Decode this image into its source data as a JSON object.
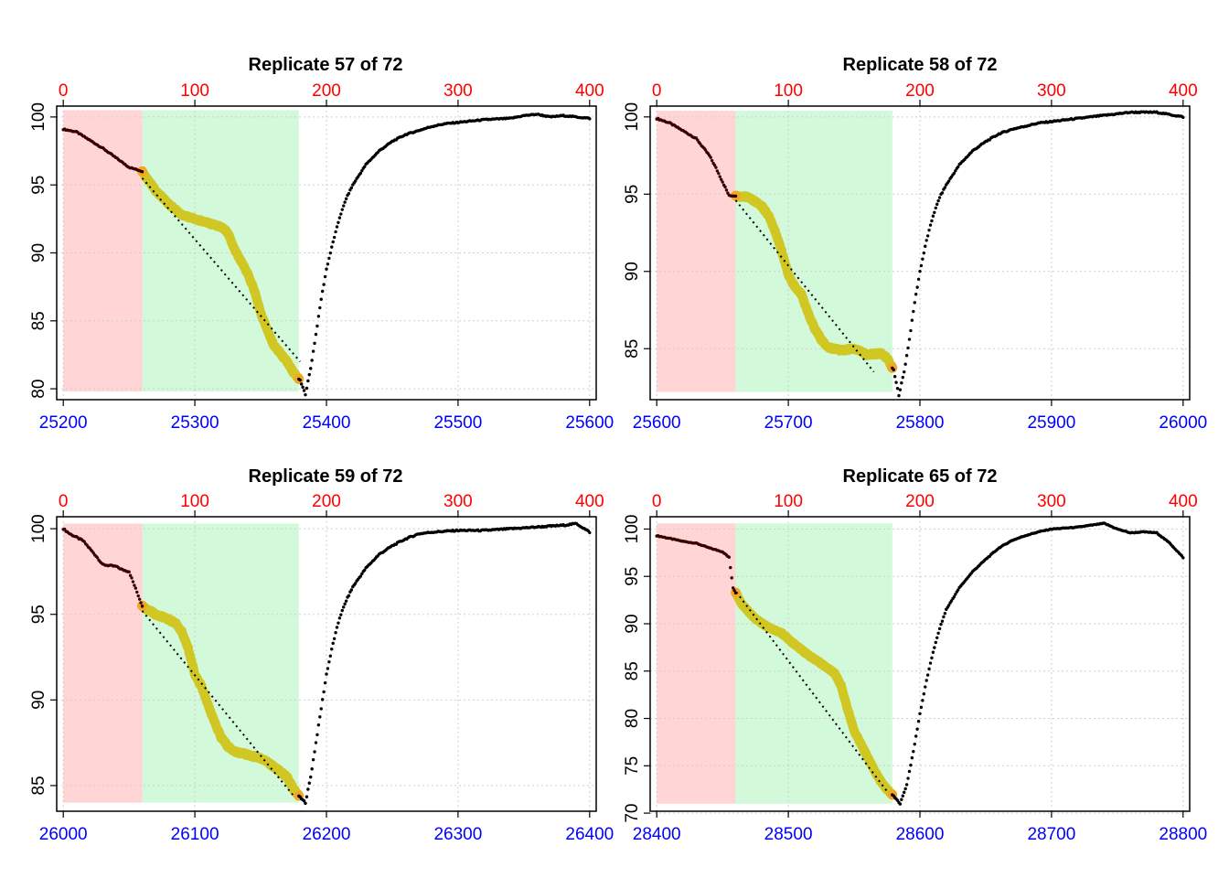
{
  "chart_data": [
    {
      "type": "scatter",
      "title": "Replicate 57 of 72",
      "xlim": [
        25195,
        25605
      ],
      "x_ticks": [
        25200,
        25300,
        25400,
        25500,
        25600
      ],
      "top_ticks": [
        0,
        100,
        200,
        300,
        400
      ],
      "ylim": [
        79.2,
        100.8
      ],
      "y_ticks": [
        80,
        85,
        90,
        95,
        100
      ],
      "series_path": [
        [
          0,
          99.1
        ],
        [
          10,
          98.9
        ],
        [
          20,
          98.3
        ],
        [
          30,
          97.7
        ],
        [
          40,
          97.0
        ],
        [
          50,
          96.3
        ],
        [
          60,
          96.0
        ],
        [
          70,
          94.6
        ],
        [
          80,
          93.6
        ],
        [
          90,
          92.8
        ],
        [
          100,
          92.5
        ],
        [
          110,
          92.2
        ],
        [
          120,
          91.9
        ],
        [
          125,
          91.5
        ],
        [
          130,
          90.3
        ],
        [
          140,
          88.5
        ],
        [
          145,
          87.3
        ],
        [
          150,
          85.6
        ],
        [
          155,
          84.3
        ],
        [
          160,
          83.2
        ],
        [
          165,
          82.6
        ],
        [
          170,
          82.0
        ],
        [
          175,
          81.2
        ],
        [
          180,
          80.6
        ],
        [
          184,
          79.6
        ],
        [
          188,
          81.5
        ],
        [
          192,
          84.0
        ],
        [
          196,
          86.6
        ],
        [
          200,
          88.8
        ],
        [
          205,
          90.8
        ],
        [
          210,
          92.6
        ],
        [
          215,
          94.0
        ],
        [
          220,
          95.0
        ],
        [
          230,
          96.5
        ],
        [
          240,
          97.5
        ],
        [
          250,
          98.2
        ],
        [
          260,
          98.7
        ],
        [
          270,
          99.0
        ],
        [
          280,
          99.3
        ],
        [
          290,
          99.5
        ],
        [
          300,
          99.6
        ],
        [
          320,
          99.8
        ],
        [
          340,
          99.9
        ],
        [
          350,
          100.1
        ],
        [
          360,
          100.2
        ],
        [
          370,
          100.0
        ],
        [
          380,
          100.1
        ],
        [
          390,
          100.0
        ],
        [
          400,
          99.9
        ]
      ],
      "fit_start": [
        60,
        95.5
      ],
      "fit_end": [
        180,
        82.0
      ],
      "pre_window": [
        0,
        60
      ],
      "fit_window": [
        60,
        179
      ],
      "y_band": [
        79.8,
        100.5
      ]
    },
    {
      "type": "scatter",
      "title": "Replicate 58 of 72",
      "xlim": [
        25595,
        26005
      ],
      "x_ticks": [
        25600,
        25700,
        25800,
        25900,
        26000
      ],
      "top_ticks": [
        0,
        100,
        200,
        300,
        400
      ],
      "ylim": [
        81.7,
        100.7
      ],
      "y_ticks": [
        85,
        90,
        95,
        100
      ],
      "series_path": [
        [
          0,
          99.9
        ],
        [
          10,
          99.6
        ],
        [
          20,
          99.1
        ],
        [
          30,
          98.6
        ],
        [
          40,
          97.5
        ],
        [
          45,
          96.7
        ],
        [
          50,
          95.8
        ],
        [
          55,
          94.9
        ],
        [
          60,
          94.9
        ],
        [
          70,
          94.8
        ],
        [
          80,
          94.2
        ],
        [
          85,
          93.6
        ],
        [
          90,
          92.6
        ],
        [
          95,
          91.3
        ],
        [
          100,
          89.8
        ],
        [
          105,
          89.0
        ],
        [
          110,
          88.5
        ],
        [
          115,
          87.3
        ],
        [
          120,
          86.3
        ],
        [
          125,
          85.6
        ],
        [
          130,
          85.1
        ],
        [
          140,
          84.9
        ],
        [
          150,
          85.0
        ],
        [
          160,
          84.6
        ],
        [
          170,
          84.7
        ],
        [
          175,
          84.4
        ],
        [
          180,
          83.6
        ],
        [
          184,
          82.0
        ],
        [
          188,
          83.5
        ],
        [
          192,
          85.6
        ],
        [
          196,
          88.0
        ],
        [
          200,
          90.0
        ],
        [
          205,
          92.0
        ],
        [
          210,
          93.6
        ],
        [
          215,
          94.8
        ],
        [
          220,
          95.6
        ],
        [
          230,
          96.9
        ],
        [
          240,
          97.8
        ],
        [
          250,
          98.4
        ],
        [
          260,
          98.9
        ],
        [
          270,
          99.2
        ],
        [
          280,
          99.4
        ],
        [
          290,
          99.6
        ],
        [
          300,
          99.7
        ],
        [
          320,
          99.9
        ],
        [
          340,
          100.1
        ],
        [
          360,
          100.3
        ],
        [
          380,
          100.3
        ],
        [
          400,
          100.0
        ]
      ],
      "fit_start": [
        60,
        94.6
      ],
      "fit_end": [
        165,
        83.5
      ],
      "pre_window": [
        0,
        60
      ],
      "fit_window": [
        60,
        179
      ],
      "y_band": [
        82.2,
        100.4
      ]
    },
    {
      "type": "scatter",
      "title": "Replicate 59 of 72",
      "xlim": [
        25995,
        26405
      ],
      "x_ticks": [
        26000,
        26100,
        26200,
        26300,
        26400
      ],
      "top_ticks": [
        0,
        100,
        200,
        300,
        400
      ],
      "ylim": [
        83.5,
        100.7
      ],
      "y_ticks": [
        85,
        90,
        95,
        100
      ],
      "series_path": [
        [
          0,
          100.0
        ],
        [
          5,
          99.7
        ],
        [
          15,
          99.3
        ],
        [
          25,
          98.4
        ],
        [
          30,
          97.9
        ],
        [
          40,
          97.8
        ],
        [
          45,
          97.6
        ],
        [
          50,
          97.5
        ],
        [
          55,
          96.5
        ],
        [
          60,
          95.5
        ],
        [
          70,
          95.0
        ],
        [
          80,
          94.7
        ],
        [
          85,
          94.5
        ],
        [
          90,
          94.0
        ],
        [
          95,
          93.0
        ],
        [
          100,
          91.5
        ],
        [
          105,
          90.8
        ],
        [
          110,
          89.7
        ],
        [
          115,
          88.7
        ],
        [
          120,
          87.8
        ],
        [
          125,
          87.3
        ],
        [
          130,
          87.0
        ],
        [
          140,
          86.8
        ],
        [
          150,
          86.6
        ],
        [
          160,
          86.1
        ],
        [
          170,
          85.5
        ],
        [
          175,
          84.8
        ],
        [
          180,
          84.3
        ],
        [
          184,
          84.0
        ],
        [
          188,
          85.5
        ],
        [
          192,
          87.5
        ],
        [
          196,
          89.5
        ],
        [
          200,
          91.5
        ],
        [
          205,
          93.3
        ],
        [
          210,
          94.8
        ],
        [
          215,
          95.8
        ],
        [
          220,
          96.6
        ],
        [
          230,
          97.7
        ],
        [
          240,
          98.5
        ],
        [
          250,
          99.0
        ],
        [
          260,
          99.4
        ],
        [
          270,
          99.7
        ],
        [
          280,
          99.8
        ],
        [
          300,
          99.9
        ],
        [
          320,
          99.9
        ],
        [
          340,
          100.0
        ],
        [
          360,
          100.1
        ],
        [
          380,
          100.2
        ],
        [
          390,
          100.3
        ],
        [
          400,
          99.8
        ]
      ],
      "fit_start": [
        60,
        95.2
      ],
      "fit_end": [
        175,
        84.4
      ],
      "pre_window": [
        0,
        60
      ],
      "fit_window": [
        60,
        179
      ],
      "y_band": [
        84.0,
        100.3
      ]
    },
    {
      "type": "scatter",
      "title": "Replicate 65 of 72",
      "xlim": [
        28395,
        28805
      ],
      "x_ticks": [
        28400,
        28500,
        28600,
        28700,
        28800
      ],
      "top_ticks": [
        0,
        100,
        200,
        300,
        400
      ],
      "ylim": [
        70.2,
        101.3
      ],
      "y_ticks": [
        70,
        75,
        80,
        85,
        90,
        95,
        100
      ],
      "series_path": [
        [
          0,
          99.3
        ],
        [
          10,
          99.0
        ],
        [
          20,
          98.7
        ],
        [
          30,
          98.5
        ],
        [
          40,
          98.0
        ],
        [
          50,
          97.6
        ],
        [
          55,
          97.0
        ],
        [
          58,
          93.8
        ],
        [
          65,
          92.0
        ],
        [
          75,
          90.5
        ],
        [
          85,
          89.6
        ],
        [
          95,
          89.0
        ],
        [
          105,
          87.8
        ],
        [
          115,
          86.7
        ],
        [
          125,
          85.8
        ],
        [
          135,
          84.8
        ],
        [
          140,
          83.5
        ],
        [
          145,
          81.0
        ],
        [
          150,
          78.7
        ],
        [
          155,
          77.3
        ],
        [
          160,
          76.0
        ],
        [
          165,
          74.6
        ],
        [
          170,
          73.4
        ],
        [
          175,
          72.5
        ],
        [
          180,
          71.8
        ],
        [
          185,
          71.0
        ],
        [
          190,
          73.0
        ],
        [
          195,
          76.5
        ],
        [
          200,
          80.5
        ],
        [
          205,
          84.0
        ],
        [
          210,
          87.0
        ],
        [
          215,
          89.5
        ],
        [
          220,
          91.5
        ],
        [
          230,
          93.8
        ],
        [
          240,
          95.5
        ],
        [
          250,
          96.8
        ],
        [
          260,
          98.0
        ],
        [
          270,
          98.8
        ],
        [
          280,
          99.3
        ],
        [
          290,
          99.7
        ],
        [
          300,
          100.0
        ],
        [
          320,
          100.2
        ],
        [
          340,
          100.6
        ],
        [
          350,
          100.0
        ],
        [
          360,
          99.6
        ],
        [
          370,
          99.7
        ],
        [
          380,
          99.6
        ],
        [
          390,
          98.5
        ],
        [
          400,
          97.0
        ]
      ],
      "fit_start": [
        58,
        93.8
      ],
      "fit_end": [
        175,
        72.3
      ],
      "pre_window": [
        0,
        60
      ],
      "fit_window": [
        60,
        179
      ],
      "y_band": [
        71.0,
        100.6
      ]
    }
  ]
}
